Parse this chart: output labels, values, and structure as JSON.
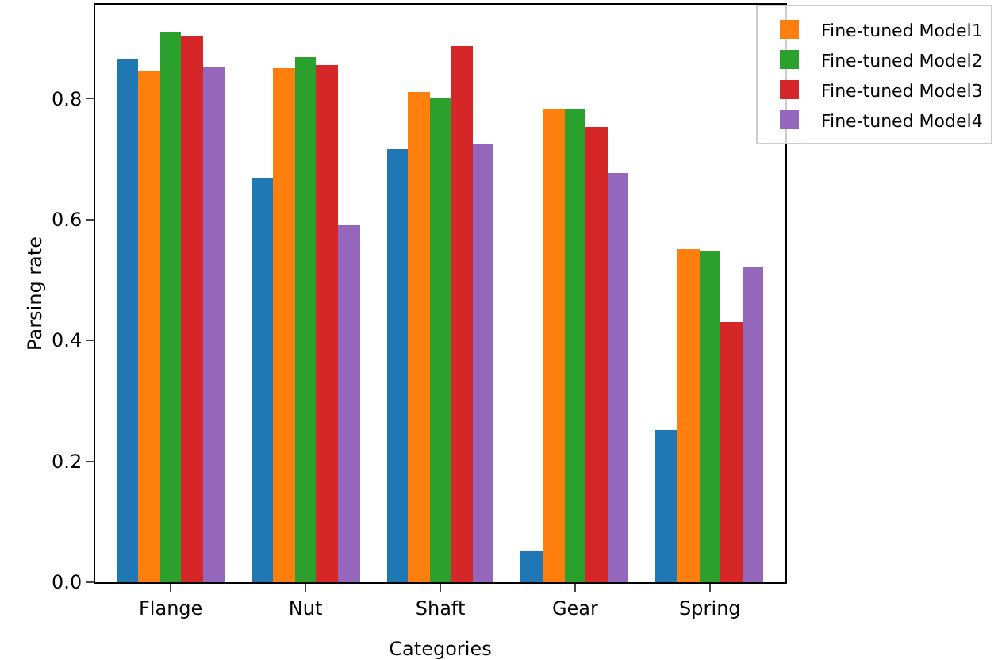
{
  "chart_data": {
    "type": "bar",
    "xlabel": "Categories",
    "ylabel": "Parsing rate",
    "categories": [
      "Flange",
      "Nut",
      "Shaft",
      "Gear",
      "Spring"
    ],
    "series": [
      {
        "color": "#1f77b4",
        "values": [
          0.866,
          0.67,
          0.716,
          0.053,
          0.251
        ]
      },
      {
        "name": "Fine-tuned Model1",
        "color": "#ff7f0e",
        "values": [
          0.846,
          0.851,
          0.811,
          0.781,
          0.551
        ]
      },
      {
        "name": "Fine-tuned Model2",
        "color": "#2ca02c",
        "values": [
          0.91,
          0.869,
          0.801,
          0.781,
          0.548
        ]
      },
      {
        "name": "Fine-tuned Model3",
        "color": "#d62728",
        "values": [
          0.902,
          0.856,
          0.887,
          0.753,
          0.43
        ]
      },
      {
        "name": "Fine-tuned Model4",
        "color": "#9467bd",
        "values": [
          0.853,
          0.59,
          0.725,
          0.677,
          0.523
        ]
      }
    ],
    "ylim": [
      0,
      0.955
    ],
    "yticks": [
      {
        "value": 0,
        "label": "0.0"
      },
      0.2,
      0.4,
      0.6,
      0.8
    ],
    "grid": false,
    "legend": "top right"
  }
}
